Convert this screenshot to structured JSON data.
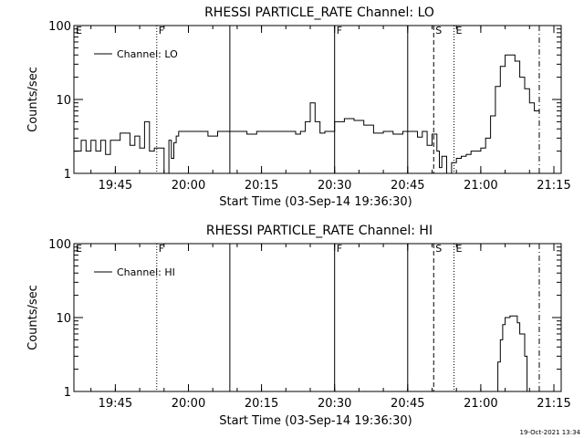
{
  "stamp": "19-Oct-2021 13:34",
  "chart_data": [
    {
      "type": "line",
      "title": "RHESSI PARTICLE_RATE Channel: LO",
      "xlabel": "Start Time (03-Sep-14 19:36:30)",
      "ylabel": "Counts/sec",
      "y_scale": "log",
      "ylim": [
        1,
        100
      ],
      "xlim": [
        "19:36:30",
        "21:16:30"
      ],
      "x_ticks": [
        "19:45",
        "20:00",
        "20:15",
        "20:30",
        "20:45",
        "21:00",
        "21:15"
      ],
      "y_ticks": [
        "1",
        "10",
        "100"
      ],
      "legend": {
        "label": "Channel: LO",
        "position": "top-left"
      },
      "series": [
        {
          "name": "Channel: LO",
          "x": [
            "19:36:30",
            "19:38:00",
            "19:39:00",
            "19:40:00",
            "19:41:00",
            "19:42:00",
            "19:43:00",
            "19:44:00",
            "19:45:00",
            "19:46:00",
            "19:47:00",
            "19:48:00",
            "19:49:00",
            "19:50:00",
            "19:51:00",
            "19:52:00",
            "19:53:00",
            "19:54:00",
            "19:55:00",
            "19:56:00",
            "19:56:30",
            "19:57:00",
            "19:57:30",
            "19:58:00",
            "20:00:00",
            "20:02:00",
            "20:04:00",
            "20:06:00",
            "20:08:00",
            "20:10:00",
            "20:12:00",
            "20:14:00",
            "20:16:00",
            "20:18:00",
            "20:20:00",
            "20:22:00",
            "20:23:00",
            "20:24:00",
            "20:25:00",
            "20:26:00",
            "20:27:00",
            "20:28:00",
            "20:30:00",
            "20:32:00",
            "20:34:00",
            "20:36:00",
            "20:38:00",
            "20:40:00",
            "20:42:00",
            "20:44:00",
            "20:46:00",
            "20:47:00",
            "20:48:00",
            "20:49:00",
            "20:50:00",
            "20:51:00",
            "20:51:30",
            "20:52:00",
            "20:53:00",
            "20:54:00",
            "20:55:00",
            "20:56:00",
            "20:57:00",
            "20:58:00",
            "21:00:00",
            "21:01:00",
            "21:02:00",
            "21:03:00",
            "21:04:00",
            "21:05:00",
            "21:06:00",
            "21:07:00",
            "21:08:00",
            "21:09:00",
            "21:10:00",
            "21:11:00",
            "21:12:00"
          ],
          "values": [
            2,
            2.8,
            2,
            2.8,
            2,
            2.8,
            1.8,
            2.8,
            2.8,
            3.5,
            3.5,
            2.4,
            3.2,
            2.2,
            5,
            2,
            2.2,
            2.2,
            1,
            2.8,
            1.6,
            2.6,
            3.2,
            3.7,
            3.7,
            3.7,
            3.2,
            3.7,
            3.7,
            3.7,
            3.4,
            3.7,
            3.7,
            3.7,
            3.7,
            3.4,
            3.7,
            5,
            9,
            5,
            3.5,
            3.7,
            5,
            5.5,
            5.2,
            4.5,
            3.5,
            3.7,
            3.4,
            3.7,
            3.7,
            3.1,
            3.7,
            2.4,
            3.4,
            2,
            1.2,
            1.7,
            1,
            1.4,
            1.6,
            1.7,
            1.8,
            2,
            2.2,
            3,
            6,
            15,
            28,
            40,
            40,
            33,
            20,
            14,
            9,
            7,
            6.5
          ]
        }
      ]
    },
    {
      "type": "line",
      "title": "RHESSI PARTICLE_RATE Channel: HI",
      "xlabel": "Start Time (03-Sep-14 19:36:30)",
      "ylabel": "Counts/sec",
      "y_scale": "log",
      "ylim": [
        1,
        100
      ],
      "xlim": [
        "19:36:30",
        "21:16:30"
      ],
      "x_ticks": [
        "19:45",
        "20:00",
        "20:15",
        "20:30",
        "20:45",
        "21:00",
        "21:15"
      ],
      "y_ticks": [
        "1",
        "10",
        "100"
      ],
      "legend": {
        "label": "Channel: HI",
        "position": "top-left"
      },
      "series": [
        {
          "name": "Channel: HI",
          "x": [
            "21:03:00",
            "21:03:30",
            "21:04:00",
            "21:04:30",
            "21:05:00",
            "21:06:00",
            "21:07:00",
            "21:07:30",
            "21:08:00",
            "21:09:00",
            "21:09:30"
          ],
          "values": [
            1,
            2.5,
            5,
            8,
            10,
            10.5,
            10.5,
            8.5,
            6,
            3,
            1
          ]
        }
      ]
    }
  ],
  "markers": {
    "times": [
      "19:53:30",
      "20:08:30",
      "20:30:00",
      "20:45:00",
      "20:50:20",
      "20:54:30",
      "21:12:00"
    ],
    "styles": [
      "dotted",
      "solid",
      "solid",
      "solid",
      "dashed",
      "dotted",
      "dashdot"
    ],
    "flags": [
      {
        "text": "E",
        "time": "19:36:30"
      },
      {
        "text": "F",
        "time": "19:53:30"
      },
      {
        "text": "F",
        "time": "20:30:00"
      },
      {
        "text": "S",
        "time": "20:50:20"
      },
      {
        "text": "E",
        "time": "20:54:30"
      }
    ]
  }
}
